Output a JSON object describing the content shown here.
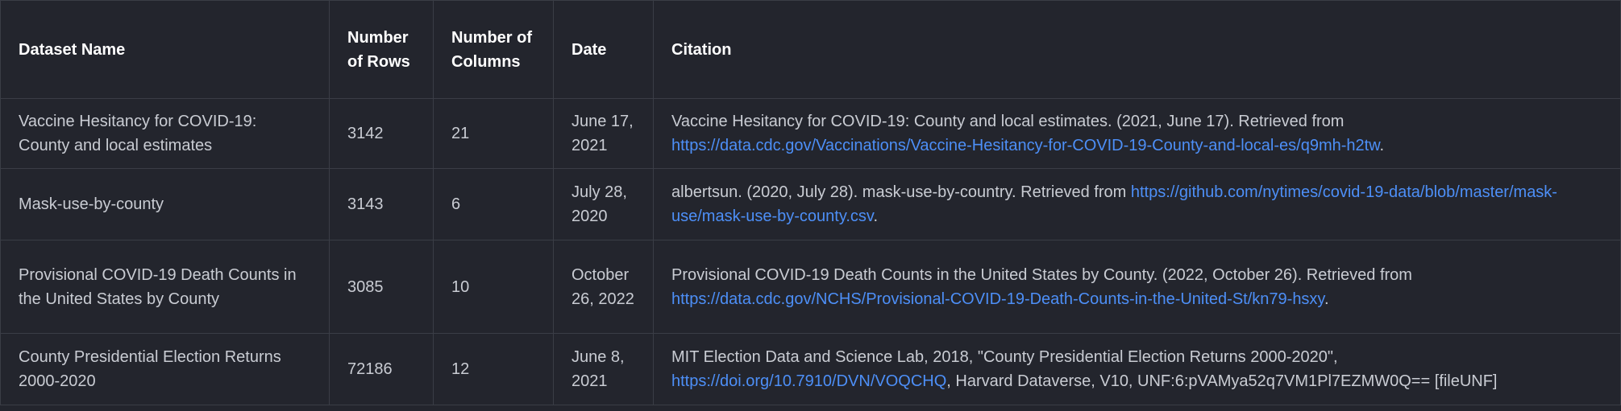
{
  "table": {
    "headers": {
      "name": "Dataset Name",
      "rows": "Number of Rows",
      "cols": "Number of Columns",
      "date": "Date",
      "citation": "Citation"
    },
    "rows": [
      {
        "name": "Vaccine Hesitancy for COVID-19: County and local estimates",
        "rows": "3142",
        "cols": "21",
        "date": "June 17, 2021",
        "citation_pre": "Vaccine Hesitancy for COVID-19: County and local estimates. (2021, June 17). Retrieved from ",
        "citation_link": "https://data.cdc.gov/Vaccinations/Vaccine-Hesitancy-for-COVID-19-County-and-local-es/q9mh-h2tw",
        "citation_post": "."
      },
      {
        "name": "Mask-use-by-county",
        "rows": "3143",
        "cols": "6",
        "date": "July 28, 2020",
        "citation_pre": "albertsun. (2020, July 28). mask-use-by-country. Retrieved from ",
        "citation_link": "https://github.com/nytimes/covid-19-data/blob/master/mask-use/mask-use-by-county.csv",
        "citation_post": "."
      },
      {
        "name": "Provisional COVID-19 Death Counts in the United States by County",
        "rows": "3085",
        "cols": "10",
        "date": "October 26, 2022",
        "citation_pre": "Provisional COVID-19 Death Counts in the United States by County. (2022, October 26). Retrieved from ",
        "citation_link": "https://data.cdc.gov/NCHS/Provisional-COVID-19-Death-Counts-in-the-United-St/kn79-hsxy",
        "citation_post": "."
      },
      {
        "name": "County Presidential Election Returns 2000-2020",
        "rows": "72186",
        "cols": "12",
        "date": "June 8, 2021",
        "citation_pre": "MIT Election Data and Science Lab, 2018, \"County Presidential Election Returns 2000-2020\", ",
        "citation_link": "https://doi.org/10.7910/DVN/VOQCHQ",
        "citation_post": ", Harvard Dataverse, V10, UNF:6:pVAMya52q7VM1Pl7EZMW0Q== [fileUNF]"
      }
    ]
  }
}
